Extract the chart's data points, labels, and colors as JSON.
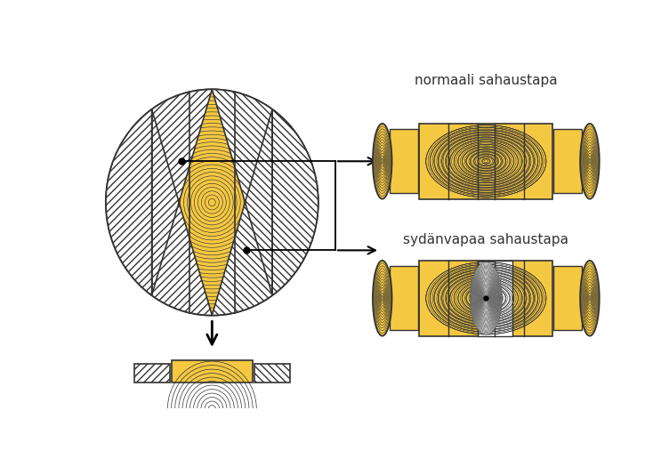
{
  "title1": "normaali sahaustapa",
  "title2": "sydänvapaa sahaustapa",
  "wood_color": "#F5C842",
  "ring_color": "#333333",
  "bg_color": "#ffffff",
  "outline_color": "#333333"
}
